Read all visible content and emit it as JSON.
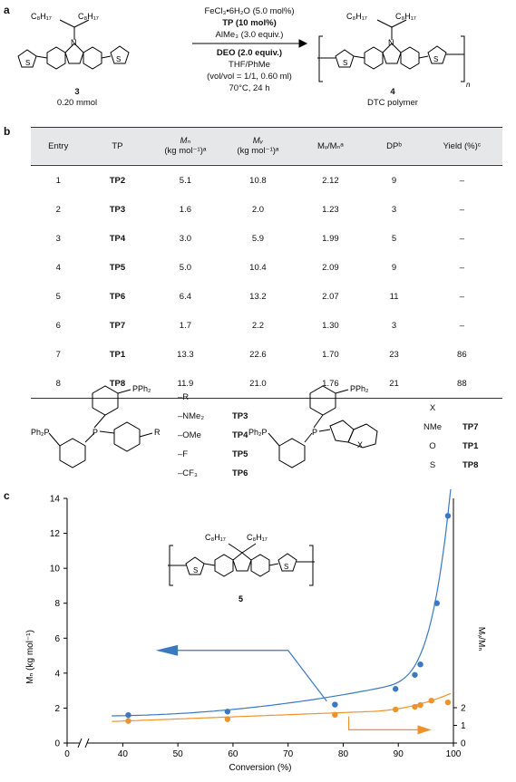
{
  "panel_a": {
    "label": "a",
    "reactant_substituents": "C₈H₁₇",
    "reactant_id": "3",
    "reactant_amount": "0.20 mmol",
    "conditions_top": [
      "FeCl₃•6H₂O (5.0 mol%)",
      "TP (10 mol%)",
      "AlMe₃ (3.0 equiv.)"
    ],
    "conditions_bottom": [
      "DEO (2.0 equiv.)",
      "THF/PhMe",
      "(vol/vol = 1/1, 0.60 ml)",
      "70°C, 24 h"
    ],
    "product_id": "4",
    "product_name": "DTC polymer",
    "repeat_n": "n",
    "atoms": {
      "N": "N",
      "S": "S"
    }
  },
  "panel_b": {
    "label": "b",
    "headers": [
      "Entry",
      "TP",
      "Mₙ (kg mol⁻¹)ᵃ",
      "Mᵥᵥ (kg mol⁻¹)ᵃ",
      "Mᵥᵥ/Mₙᵃ",
      "DPᵇ",
      "Yield (%)ᶜ"
    ],
    "header_lines": {
      "mn_top": "Mₙ",
      "mn_bottom": "(kg mol⁻¹)ᵃ",
      "mw_top": "Mᵥ",
      "mw_bottom": "(kg mol⁻¹)ᵃ",
      "ratio": "Mᵥ/Mₙᵃ",
      "dp": "DPᵇ",
      "yield": "Yield (%)ᶜ"
    },
    "rows": [
      [
        "1",
        "TP2",
        "5.1",
        "10.8",
        "2.12",
        "9",
        "–"
      ],
      [
        "2",
        "TP3",
        "1.6",
        "2.0",
        "1.23",
        "3",
        "–"
      ],
      [
        "3",
        "TP4",
        "3.0",
        "5.9",
        "1.99",
        "5",
        "–"
      ],
      [
        "4",
        "TP5",
        "5.0",
        "10.4",
        "2.09",
        "9",
        "–"
      ],
      [
        "5",
        "TP6",
        "6.4",
        "13.2",
        "2.07",
        "11",
        "–"
      ],
      [
        "6",
        "TP7",
        "1.7",
        "2.2",
        "1.30",
        "3",
        "–"
      ],
      [
        "7",
        "TP1",
        "13.3",
        "22.6",
        "1.70",
        "23",
        "86"
      ],
      [
        "8",
        "TP8",
        "11.9",
        "21.0",
        "1.76",
        "21",
        "88"
      ]
    ],
    "ligand_left": {
      "pph2": "PPh₂",
      "ph2p": "Ph₂P",
      "p": "P",
      "r": "R",
      "subs": [
        "–R",
        "–NMe₂",
        "–OMe",
        "–F",
        "–CF₃"
      ],
      "ids": [
        "",
        "TP3",
        "TP4",
        "TP5",
        "TP6"
      ]
    },
    "ligand_right": {
      "pph2": "PPh₂",
      "ph2p": "Ph₂P",
      "p": "P",
      "x": "X",
      "x_header": "X",
      "x_values": [
        "NMe",
        "O",
        "S"
      ],
      "ids": [
        "TP7",
        "TP1",
        "TP8"
      ]
    }
  },
  "panel_c": {
    "label": "c",
    "structure_substituents": "C₈H₁₇",
    "structure_id": "5",
    "chart_data": {
      "type": "scatter",
      "xlabel": "Conversion (%)",
      "ylabel_left": "Mₙ (kg mol⁻¹)",
      "ylabel_right": "Mᵥ/Mₙ",
      "x_ticks": [
        0,
        40,
        50,
        60,
        70,
        80,
        90,
        100
      ],
      "y_ticks": [
        0,
        2,
        4,
        6,
        8,
        10,
        12,
        14
      ],
      "y2_ticks": [
        0,
        1,
        2
      ],
      "xlim": [
        35,
        100
      ],
      "ylim": [
        0,
        14
      ],
      "axis_break": "x between 0 and 40",
      "series": [
        {
          "color": "#3a78c2",
          "x": [
            41,
            59,
            78.5,
            89.5,
            93,
            94,
            97,
            99
          ],
          "y": [
            1.6,
            1.8,
            2.2,
            3.1,
            3.9,
            4.5,
            8.0,
            13.0
          ]
        },
        {
          "color": "#f0922b",
          "x": [
            41,
            59,
            78.5,
            89.5,
            93,
            94,
            96,
            99
          ],
          "y": [
            1.25,
            1.35,
            1.6,
            1.9,
            2.05,
            2.15,
            2.4,
            2.3
          ]
        }
      ],
      "arrows": [
        "left (blue series → left axis)",
        "right (orange series → right axis)"
      ]
    }
  }
}
